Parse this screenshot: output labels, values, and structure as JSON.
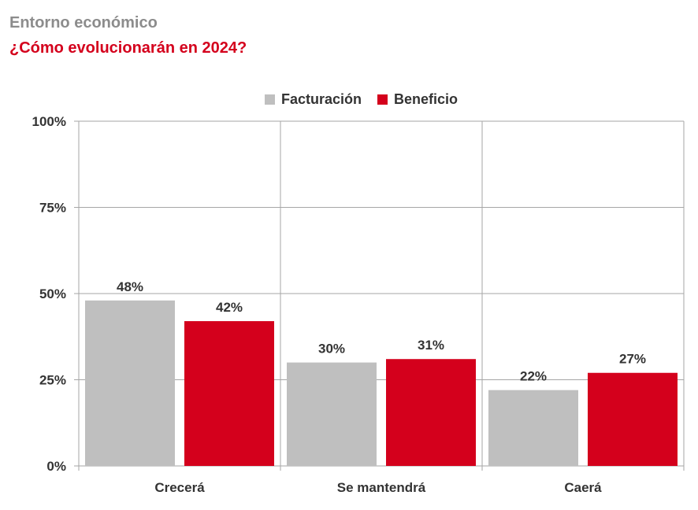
{
  "header": {
    "supertitle": "Entorno económico",
    "title": "¿Cómo evolucionarán en 2024?"
  },
  "colors": {
    "facturacion": "#bfbfbf",
    "beneficio": "#d4001c",
    "grid": "#a6a6a6",
    "text": "#333333"
  },
  "chart_data": {
    "type": "bar",
    "title": "¿Cómo evolucionarán en 2024?",
    "xlabel": "",
    "ylabel": "",
    "categories": [
      "Crecerá",
      "Se mantendrá",
      "Caerá"
    ],
    "series": [
      {
        "name": "Facturación",
        "values": [
          48,
          30,
          22
        ],
        "labels": [
          "48%",
          "30%",
          "22%"
        ]
      },
      {
        "name": "Beneficio",
        "values": [
          42,
          31,
          27
        ],
        "labels": [
          "42%",
          "31%",
          "27%"
        ]
      }
    ],
    "yticks": [
      0,
      25,
      50,
      75,
      100
    ],
    "ytick_labels": [
      "0%",
      "25%",
      "50%",
      "75%",
      "100%"
    ],
    "ylim": [
      0,
      100
    ],
    "grid": true,
    "legend_position": "top-center"
  }
}
